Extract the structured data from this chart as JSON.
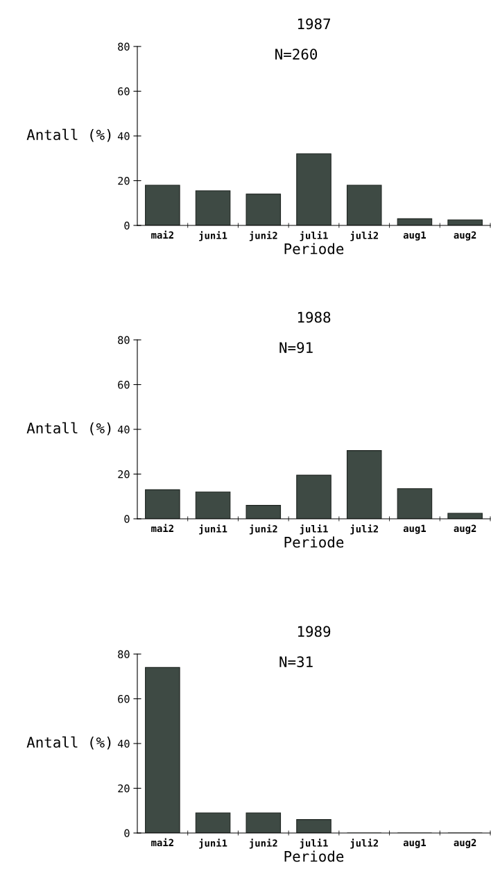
{
  "chart_data": [
    {
      "type": "bar",
      "title": "1987",
      "subtitle": "N=260",
      "xlabel": "Periode",
      "ylabel": "Antall (%)",
      "categories": [
        "mai2",
        "juni1",
        "juni2",
        "juli1",
        "juli2",
        "aug1",
        "aug2"
      ],
      "values": [
        18,
        15.5,
        14,
        32,
        18,
        3,
        2.5
      ],
      "color": "#3e4a44",
      "ylim": [
        0,
        80
      ],
      "yticks": [
        0,
        20,
        40,
        60,
        80
      ],
      "grid": false
    },
    {
      "type": "bar",
      "title": "1988",
      "subtitle": "N=91",
      "xlabel": "Periode",
      "ylabel": "Antall (%)",
      "categories": [
        "mai2",
        "juni1",
        "juni2",
        "juli1",
        "juli2",
        "aug1",
        "aug2"
      ],
      "values": [
        13,
        12,
        6,
        19.5,
        30.5,
        13.5,
        2.5
      ],
      "color": "#3e4a44",
      "ylim": [
        0,
        80
      ],
      "yticks": [
        0,
        20,
        40,
        60,
        80
      ],
      "grid": false
    },
    {
      "type": "bar",
      "title": "1989",
      "subtitle": "N=31",
      "xlabel": "Periode",
      "ylabel": "Antall (%)",
      "categories": [
        "mai2",
        "juni1",
        "juni2",
        "juli1",
        "juli2",
        "aug1",
        "aug2"
      ],
      "values": [
        74,
        9,
        9,
        6,
        0,
        0,
        0
      ],
      "color": "#3e4a44",
      "ylim": [
        0,
        80
      ],
      "yticks": [
        0,
        20,
        40,
        60,
        80
      ],
      "grid": false
    }
  ]
}
